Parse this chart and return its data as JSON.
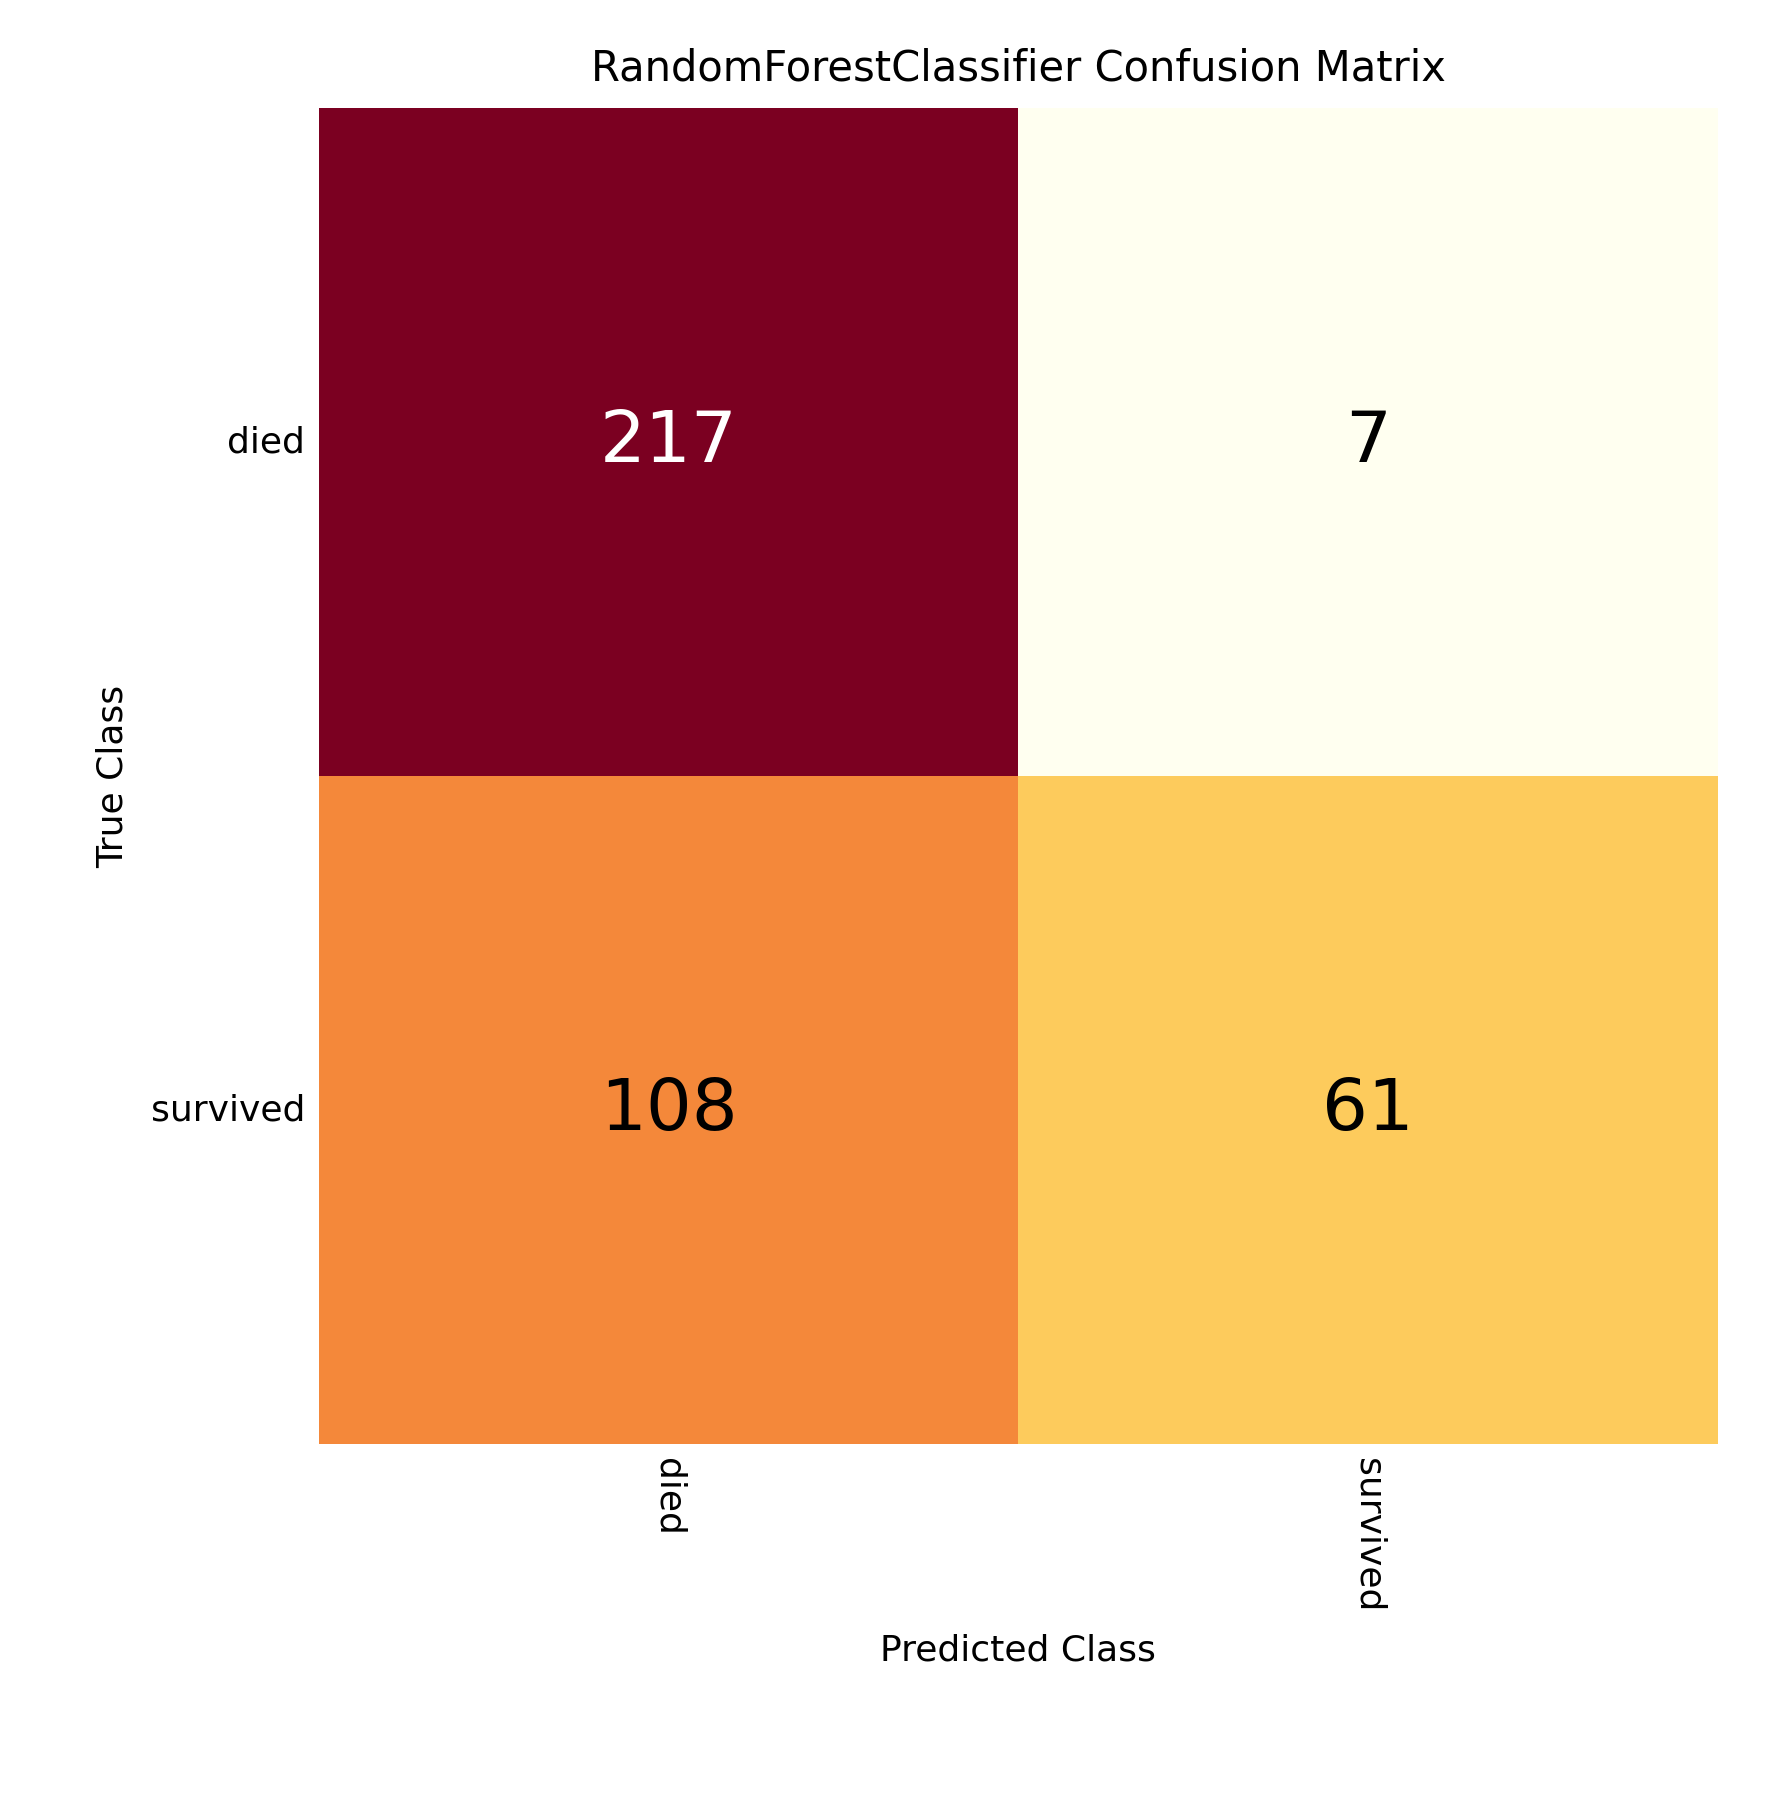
{
  "title": "RandomForestClassifier Confusion Matrix",
  "classes": [
    "died",
    "survived"
  ],
  "matrix": [
    [
      217,
      7
    ],
    [
      108,
      61
    ]
  ],
  "cell_colors": [
    [
      "#7B0021",
      "#FFFFF0"
    ],
    [
      "#F4883A",
      "#FDCB5C"
    ]
  ],
  "text_colors": [
    [
      "#FFFFFF",
      "#000000"
    ],
    [
      "#000000",
      "#000000"
    ]
  ],
  "xlabel": "Predicted Class",
  "ylabel": "True Class",
  "title_fontsize": 30,
  "label_fontsize": 26,
  "tick_fontsize": 26,
  "value_fontsize": 52,
  "background_color": "#FFFFFF"
}
